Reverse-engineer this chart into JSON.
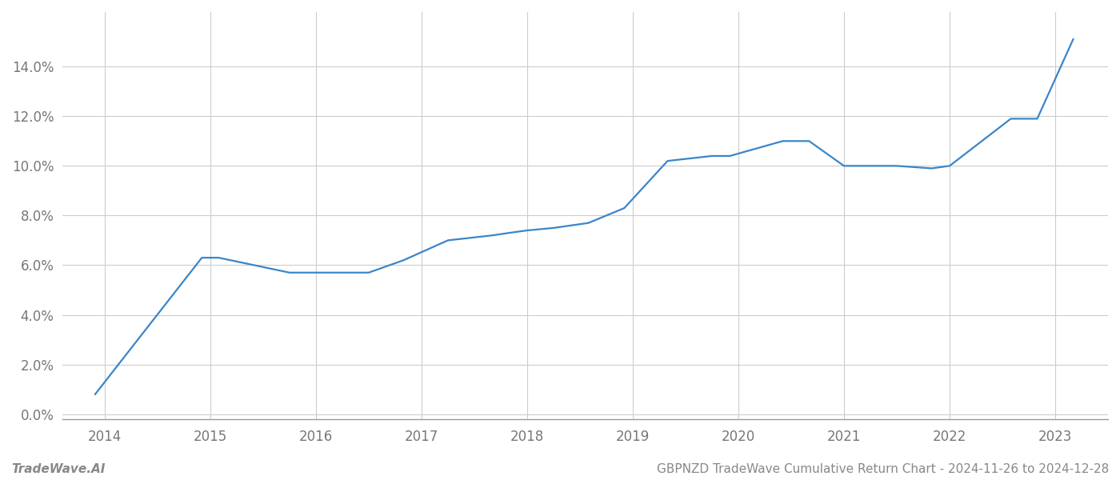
{
  "x_values": [
    2013.91,
    2014.92,
    2015.08,
    2015.75,
    2016.5,
    2016.83,
    2017.25,
    2017.67,
    2017.83,
    2018.0,
    2018.25,
    2018.58,
    2018.92,
    2019.33,
    2019.75,
    2019.92,
    2020.17,
    2020.42,
    2020.67,
    2021.0,
    2021.5,
    2021.83,
    2022.0,
    2022.58,
    2022.83,
    2023.17
  ],
  "y_values": [
    0.008,
    0.063,
    0.063,
    0.057,
    0.057,
    0.062,
    0.07,
    0.072,
    0.073,
    0.074,
    0.075,
    0.077,
    0.083,
    0.102,
    0.104,
    0.104,
    0.107,
    0.11,
    0.11,
    0.1,
    0.1,
    0.099,
    0.1,
    0.119,
    0.119,
    0.151
  ],
  "line_color": "#3a86c8",
  "line_width": 1.6,
  "xlim": [
    2013.6,
    2023.5
  ],
  "ylim": [
    -0.002,
    0.162
  ],
  "yticks": [
    0.0,
    0.02,
    0.04,
    0.06,
    0.08,
    0.1,
    0.12,
    0.14
  ],
  "xticks": [
    2014,
    2015,
    2016,
    2017,
    2018,
    2019,
    2020,
    2021,
    2022,
    2023
  ],
  "grid_color": "#cccccc",
  "grid_alpha": 1.0,
  "background_color": "#ffffff",
  "footer_left": "TradeWave.AI",
  "footer_right": "GBPNZD TradeWave Cumulative Return Chart - 2024-11-26 to 2024-12-28",
  "tick_fontsize": 12,
  "footer_fontsize": 11,
  "tick_color": "#777777",
  "footer_color": "#888888",
  "spine_color": "#999999"
}
